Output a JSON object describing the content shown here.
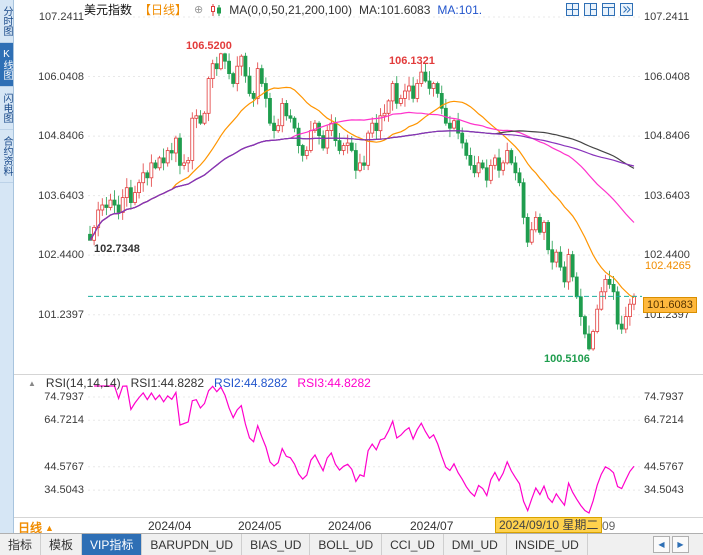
{
  "icons": {
    "plus": "⊕",
    "caret_up": "▲",
    "collapse": "▲",
    "scroll_left": "◀",
    "scroll_right": "▶"
  },
  "sidebar": {
    "items": [
      {
        "label": "分时图",
        "active": false
      },
      {
        "label": "K线图",
        "active": true
      },
      {
        "label": "闪电图",
        "active": false
      },
      {
        "label": "合约资料",
        "active": false
      }
    ]
  },
  "toolbar": {
    "title": "美元指数",
    "period": "【日线】",
    "ma_params": "MA(0,0,50,21,200,100)",
    "ma1": "MA:101.6083",
    "ma2": "MA:101."
  },
  "main_chart": {
    "y_labels": [
      "107.2411",
      "106.0408",
      "104.8406",
      "103.6403",
      "102.4400",
      "101.2397"
    ],
    "annotation_high1": "106.5200",
    "annotation_high2": "106.1321",
    "annotation_start_low": "102.7348",
    "annotation_low": "100.5106",
    "price_tag": "101.6083",
    "ref_price": "102.4265"
  },
  "rsi_panel": {
    "title": "RSI(14,14,14)",
    "rsi1": "RSI1:44.8282",
    "rsi2": "RSI2:44.8282",
    "rsi3": "RSI3:44.8282",
    "y_labels": [
      "74.7937",
      "64.7214",
      "44.5767",
      "34.5043"
    ]
  },
  "x_axis": {
    "period_label": "日线",
    "months": [
      "2024/04",
      "2024/05",
      "2024/06",
      "2024/07"
    ],
    "current_date": "2024/09/10 星期二",
    "partial_label": "l/09"
  },
  "bottom_tabs": {
    "items": [
      "指标",
      "模板",
      "VIP指标",
      "BARUPDN_UD",
      "BIAS_UD",
      "BOLL_UD",
      "CCI_UD",
      "DMI_UD",
      "INSIDE_UD"
    ],
    "active_index": 2
  },
  "colors": {
    "up": "#e23b3b",
    "down": "#1f9d4e",
    "ma21": "#ff9500",
    "ma50": "#ff33cc",
    "ma100": "#444444",
    "ma200": "#8833bb",
    "rsi": "#ff00cc",
    "current_price_line": "#1fae9e",
    "accent_blue": "#2e6fb5",
    "tag_bg": "#ffb83d"
  },
  "chart_data": {
    "type": "candlestick",
    "title": "美元指数 日线 (US Dollar Index, daily)",
    "x_range": [
      "2024/03",
      "2024/09/10"
    ],
    "price_axis": [
      107.2411,
      106.0408,
      104.8406,
      103.6403,
      102.44,
      101.2397
    ],
    "rsi_axis": [
      74.7937,
      64.7214,
      44.5767,
      34.5043
    ],
    "high": 106.52,
    "low": 100.5106,
    "last": 101.6083,
    "rsi_last": 44.8282,
    "ma_windows": [
      21,
      50,
      100,
      200
    ],
    "rsi_period": 14,
    "month_tick_indices": [
      20,
      42,
      64,
      84
    ],
    "closes": [
      102.74,
      103.0,
      103.35,
      103.45,
      103.4,
      103.55,
      103.45,
      103.3,
      103.6,
      103.8,
      103.5,
      103.7,
      103.9,
      104.1,
      104.0,
      104.3,
      104.2,
      104.4,
      104.3,
      104.55,
      104.5,
      104.8,
      104.25,
      104.3,
      104.35,
      105.2,
      105.25,
      105.1,
      105.3,
      106.0,
      106.3,
      106.2,
      106.5,
      106.35,
      106.1,
      105.9,
      106.25,
      106.45,
      106.05,
      105.7,
      105.6,
      106.2,
      105.9,
      105.6,
      105.1,
      104.95,
      105.05,
      105.5,
      105.25,
      105.2,
      105.0,
      104.65,
      104.45,
      104.55,
      104.95,
      105.1,
      104.85,
      104.6,
      104.95,
      105.1,
      104.75,
      104.55,
      104.65,
      104.7,
      104.55,
      104.15,
      104.3,
      104.25,
      104.9,
      105.1,
      104.95,
      105.25,
      105.3,
      105.55,
      105.9,
      105.5,
      105.6,
      105.75,
      105.85,
      105.6,
      105.9,
      106.13,
      105.95,
      105.8,
      105.9,
      105.7,
      105.4,
      105.1,
      105.0,
      105.15,
      104.9,
      104.7,
      104.45,
      104.25,
      104.1,
      104.3,
      104.2,
      103.95,
      104.25,
      104.4,
      104.15,
      104.3,
      104.55,
      104.3,
      104.1,
      103.9,
      103.2,
      102.7,
      102.95,
      103.2,
      102.9,
      103.1,
      102.55,
      102.3,
      102.5,
      102.2,
      101.9,
      102.45,
      102.0,
      101.6,
      101.2,
      100.85,
      100.55,
      100.9,
      101.35,
      101.7,
      101.95,
      101.85,
      101.7,
      101.05,
      100.95,
      101.2,
      101.45,
      101.61
    ]
  }
}
